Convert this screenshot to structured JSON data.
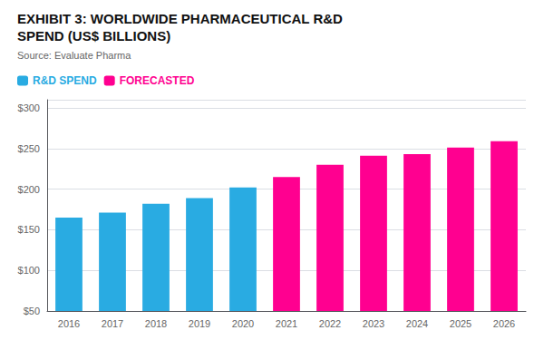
{
  "chart_data": {
    "type": "bar",
    "title": "EXHIBIT 3: WORLDWIDE PHARMACEUTICAL R&D\nSPEND (US$ BILLIONS)",
    "subtitle": "Source: Evaluate Pharma",
    "categories": [
      "2016",
      "2017",
      "2018",
      "2019",
      "2020",
      "2021",
      "2022",
      "2023",
      "2024",
      "2025",
      "2026"
    ],
    "series": [
      {
        "name": "R&D SPEND",
        "color": "#29ABE2",
        "values": [
          165,
          171,
          182,
          189,
          202,
          null,
          null,
          null,
          null,
          null,
          null
        ]
      },
      {
        "name": "FORECASTED",
        "color": "#FF0090",
        "values": [
          null,
          null,
          null,
          null,
          null,
          215,
          230,
          241,
          243,
          251,
          259
        ]
      }
    ],
    "ylim": [
      50,
      310
    ],
    "yticks": [
      {
        "value": 50,
        "label": "$50"
      },
      {
        "value": 100,
        "label": "$100"
      },
      {
        "value": 150,
        "label": "$150"
      },
      {
        "value": 200,
        "label": "$200"
      },
      {
        "value": 250,
        "label": "$250"
      },
      {
        "value": 300,
        "label": "$300"
      }
    ],
    "grid": true,
    "legend": "upper left"
  }
}
